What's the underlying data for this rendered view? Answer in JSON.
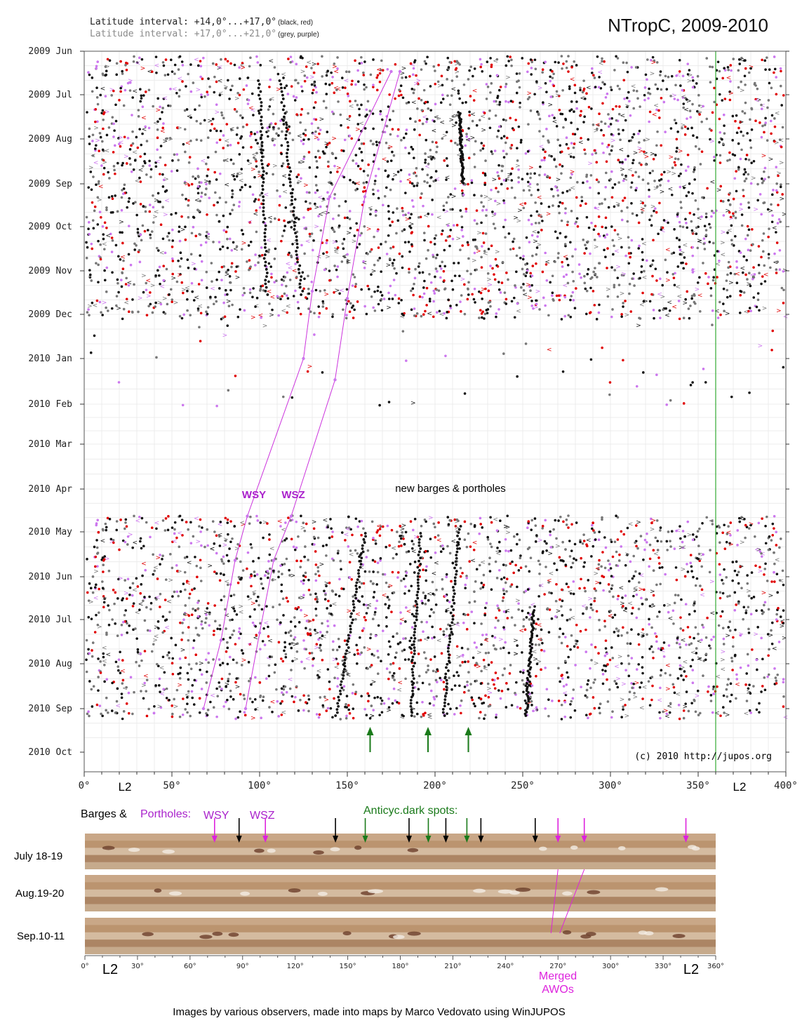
{
  "chart_data": {
    "type": "scatter",
    "title": "NTropC, 2009-2010",
    "legend": [
      {
        "text": "Latitude interval: +14,0°...+17,0°",
        "note": "(black, red)",
        "color": "#222222"
      },
      {
        "text": "Latitude interval: +17,0°...+21,0°",
        "note": "(grey, purple)",
        "color": "#8a8a8a"
      }
    ],
    "series_colors": {
      "black": "#111111",
      "red": "#e00000",
      "grey": "#777777",
      "purple": "#cc77ee"
    },
    "y_ticks": [
      "2009 Jun",
      "2009 Jul",
      "2009 Aug",
      "2009 Sep",
      "2009 Oct",
      "2009 Nov",
      "2009 Dec",
      "2010 Jan",
      "2010 Feb",
      "2010 Mar",
      "2010 Apr",
      "2010 May",
      "2010 Jun",
      "2010 Jul",
      "2010 Aug",
      "2010 Sep",
      "2010 Oct"
    ],
    "x_ticks": [
      "0°",
      "50°",
      "100°",
      "150°",
      "200°",
      "250°",
      "300°",
      "350°",
      "400°"
    ],
    "xlim": [
      0,
      400
    ],
    "grid": true,
    "l2_line_longitude": 360,
    "l2_labels": [
      "L2",
      "L2"
    ],
    "tracks": [
      {
        "name": "WSY",
        "color": "purple",
        "points": [
          [
            68,
            "2010-09-01"
          ],
          [
            78,
            "2010-07-15"
          ],
          [
            86,
            "2010-05-20"
          ],
          [
            93,
            "2010-04-20"
          ],
          [
            125,
            "2010-01-01"
          ],
          [
            130,
            "2009-11-15"
          ],
          [
            140,
            "2009-09-10"
          ],
          [
            175,
            "2009-06-15"
          ]
        ]
      },
      {
        "name": "WSZ",
        "color": "purple",
        "points": [
          [
            92,
            "2010-09-01"
          ],
          [
            100,
            "2010-07-10"
          ],
          [
            108,
            "2010-05-20"
          ],
          [
            118,
            "2010-04-20"
          ],
          [
            143,
            "2010-01-15"
          ],
          [
            150,
            "2009-11-20"
          ],
          [
            160,
            "2009-09-10"
          ],
          [
            180,
            "2009-06-15"
          ]
        ]
      }
    ],
    "annotations": [
      {
        "text": "WSY",
        "color": "#aa22cc"
      },
      {
        "text": "WSZ",
        "color": "#aa22cc"
      },
      {
        "text": "new barges & portholes",
        "color": "#000000"
      },
      {
        "text": "(c) 2010 http://jupos.org",
        "color": "#000000"
      }
    ],
    "green_arrows_longitude": [
      163,
      196,
      219
    ]
  },
  "strip_panel": {
    "caption_barges": "Barges &",
    "caption_portholes": "Portholes:",
    "caption_wsy": "WSY",
    "caption_wsz": "WSZ",
    "caption_anticyc": "Anticyc.dark spots:",
    "rows": [
      "July 18-19",
      "Aug.19-20",
      "Sep.10-11"
    ],
    "axis_ticks": [
      "0°",
      "30°",
      "60°",
      "90°",
      "120°",
      "150°",
      "180°",
      "210°",
      "240°",
      "270°",
      "300°",
      "330°",
      "360°"
    ],
    "l2_left": "L2",
    "l2_right": "L2",
    "merged_note": [
      "Merged",
      "AWOs"
    ],
    "black_arrows_longitude": [
      88,
      143,
      185,
      206,
      226,
      257
    ],
    "magenta_arrows_longitude": [
      74,
      103,
      270,
      285,
      343
    ],
    "green_arrows_longitude": [
      160,
      196,
      218
    ]
  },
  "credit": "Images by various observers, made into maps by Marco Vedovato using WinJUPOS"
}
